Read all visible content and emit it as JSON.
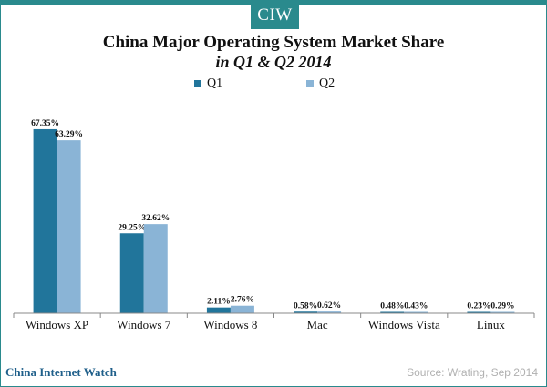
{
  "brand": {
    "logo_text": "CIW",
    "footer_name": "China Internet Watch",
    "accent": "#2a8a8d"
  },
  "source": "Source: Wrating,  Sep 2014",
  "chart_data": {
    "type": "bar",
    "title": "China Major Operating System Market Share",
    "subtitle": "in Q1 & Q2 2014",
    "categories": [
      "Windows XP",
      "Windows 7",
      "Windows 8",
      "Mac",
      "Windows Vista",
      "Linux"
    ],
    "series": [
      {
        "name": "Q1",
        "color": "#21759b",
        "values": [
          67.35,
          29.25,
          2.11,
          0.58,
          0.48,
          0.23
        ],
        "labels": [
          "67.35%",
          "29.25%",
          "2.11%",
          "0.58%",
          "0.48%",
          "0.23%"
        ]
      },
      {
        "name": "Q2",
        "color": "#8ab4d6",
        "values": [
          63.29,
          32.62,
          2.76,
          0.62,
          0.43,
          0.29
        ],
        "labels": [
          "63.29%",
          "32.62%",
          "2.76%",
          "0.62%",
          "0.43%",
          "0.29%"
        ]
      }
    ],
    "ylim": [
      0,
      70
    ],
    "grid": false,
    "legend_position": "top-center"
  }
}
